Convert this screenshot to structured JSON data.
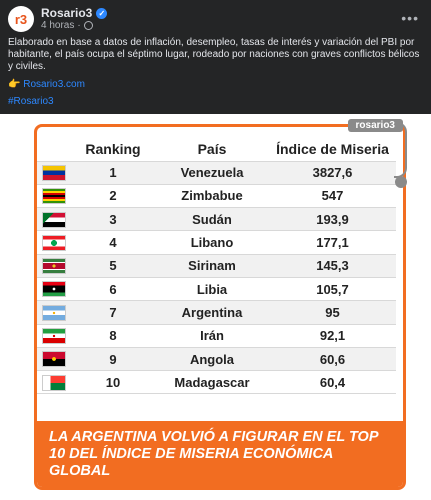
{
  "post": {
    "page_name": "Rosario3",
    "avatar_text": "r3",
    "time": "4 horas",
    "time_separator": "·",
    "more_label": "•••",
    "text": "Elaborado en base a datos de inflación, desempleo, tasas de interés y variación del PBI por habitante, el país ocupa el séptimo lugar, rodeado por naciones con graves conflictos bélicos y civiles.",
    "link_emoji": "👉",
    "link_text": "Rosario3.com",
    "hashtag": "#Rosario3",
    "verified_mark": "✓"
  },
  "image": {
    "watermark": "rosario3",
    "headers": {
      "ranking": "Ranking",
      "country": "País",
      "index": "Índice de Miseria"
    },
    "rows": [
      {
        "rank": "1",
        "country": "Venezuela",
        "value": "3827,6",
        "flag": "venezuela-flag"
      },
      {
        "rank": "2",
        "country": "Zimbabue",
        "value": "547",
        "flag": "zimbabwe-flag"
      },
      {
        "rank": "3",
        "country": "Sudán",
        "value": "193,9",
        "flag": "sudan-flag"
      },
      {
        "rank": "4",
        "country": "Libano",
        "value": "177,1",
        "flag": "lebanon-flag"
      },
      {
        "rank": "5",
        "country": "Sirinam",
        "value": "145,3",
        "flag": "suriname-flag"
      },
      {
        "rank": "6",
        "country": "Libia",
        "value": "105,7",
        "flag": "libya-flag"
      },
      {
        "rank": "7",
        "country": "Argentina",
        "value": "95",
        "flag": "argentina-flag"
      },
      {
        "rank": "8",
        "country": "Irán",
        "value": "92,1",
        "flag": "iran-flag"
      },
      {
        "rank": "9",
        "country": "Angola",
        "value": "60,6",
        "flag": "angola-flag"
      },
      {
        "rank": "10",
        "country": "Madagascar",
        "value": "60,4",
        "flag": "madagascar-flag"
      }
    ],
    "banner": "La Argentina volvió a figurar en el top 10 del índice de miseria económica global"
  },
  "colors": {
    "accent": "#f26d21",
    "link": "#2d88ff",
    "background": "#242526"
  }
}
